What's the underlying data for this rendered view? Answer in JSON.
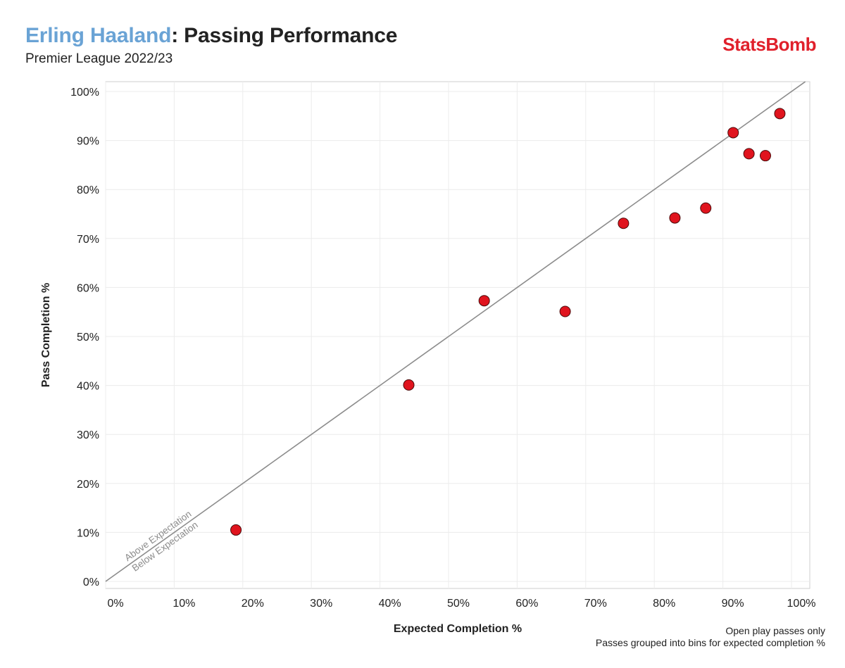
{
  "header": {
    "player": "Erling Haaland",
    "title_rest": ": Passing Performance",
    "subtitle": "Premier League 2022/23",
    "brand": "StatsBomb"
  },
  "notes": {
    "line1": "Open play passes only",
    "line2": "Passes grouped into bins for expected completion %"
  },
  "colors": {
    "point": "#e0141e",
    "line": "#8c8c8c",
    "grid": "#ececec",
    "player": "#6aa3d5",
    "brand": "#e0202b"
  },
  "chart_data": {
    "type": "scatter",
    "title": "Erling Haaland: Passing Performance",
    "xlabel": "Expected Completion %",
    "ylabel": "Pass Completion %",
    "xlim": [
      0,
      100
    ],
    "ylim": [
      0,
      100
    ],
    "xticks": [
      "0%",
      "10%",
      "20%",
      "30%",
      "40%",
      "50%",
      "60%",
      "70%",
      "80%",
      "90%",
      "100%"
    ],
    "yticks": [
      "0%",
      "10%",
      "20%",
      "30%",
      "40%",
      "50%",
      "60%",
      "70%",
      "80%",
      "90%",
      "100%"
    ],
    "grid": true,
    "reference_line": "y = x",
    "annotations": [
      "Above Expectation",
      "Below Expectation"
    ],
    "points": [
      {
        "x": 19.0,
        "y": 10.5
      },
      {
        "x": 44.2,
        "y": 40.1
      },
      {
        "x": 55.2,
        "y": 57.3
      },
      {
        "x": 67.0,
        "y": 55.1
      },
      {
        "x": 75.5,
        "y": 73.1
      },
      {
        "x": 83.0,
        "y": 74.2
      },
      {
        "x": 87.5,
        "y": 76.2
      },
      {
        "x": 91.5,
        "y": 91.6
      },
      {
        "x": 93.8,
        "y": 87.3
      },
      {
        "x": 96.2,
        "y": 86.9
      },
      {
        "x": 98.3,
        "y": 95.5
      }
    ]
  }
}
